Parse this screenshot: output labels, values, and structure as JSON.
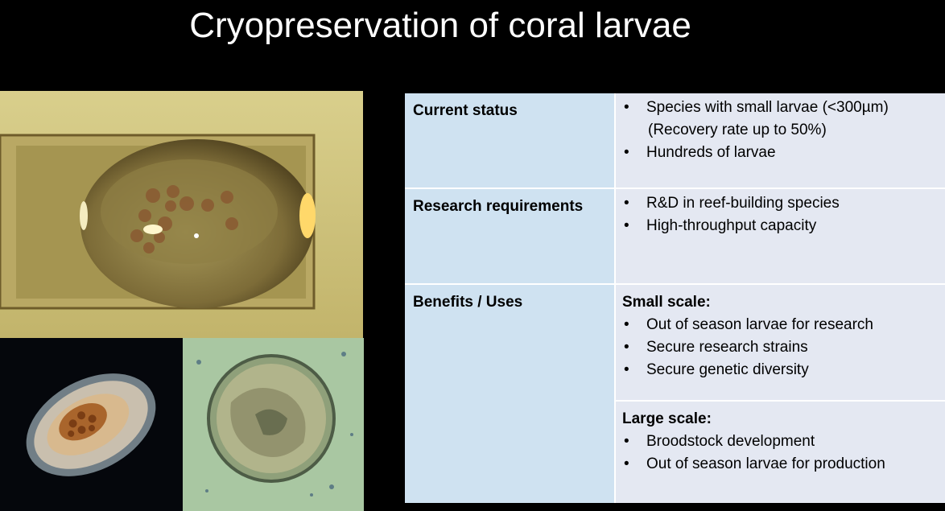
{
  "slide": {
    "title": "Cryopreservation of coral larvae"
  },
  "table": {
    "rows": [
      {
        "label": "Current status",
        "items": [
          "Species with small larvae (<300µm)",
          "(Recovery rate up to 50%)",
          "Hundreds of larvae"
        ]
      },
      {
        "label": "Research requirements",
        "items": [
          "R&D in reef-building species",
          "High-throughput capacity"
        ]
      },
      {
        "label": "Benefits / Uses",
        "small_scale": {
          "heading": "Small scale:",
          "items": [
            "Out of season larvae for research",
            "Secure research strains",
            "Secure genetic diversity"
          ]
        },
        "large_scale": {
          "heading": "Large scale:",
          "items": [
            "Broodstock development",
            "Out of season larvae for production"
          ]
        }
      }
    ]
  },
  "colors": {
    "background": "#000000",
    "title_text": "#ffffff",
    "header_cell": "#cfe2f1",
    "content_cell": "#e4e8f2"
  }
}
